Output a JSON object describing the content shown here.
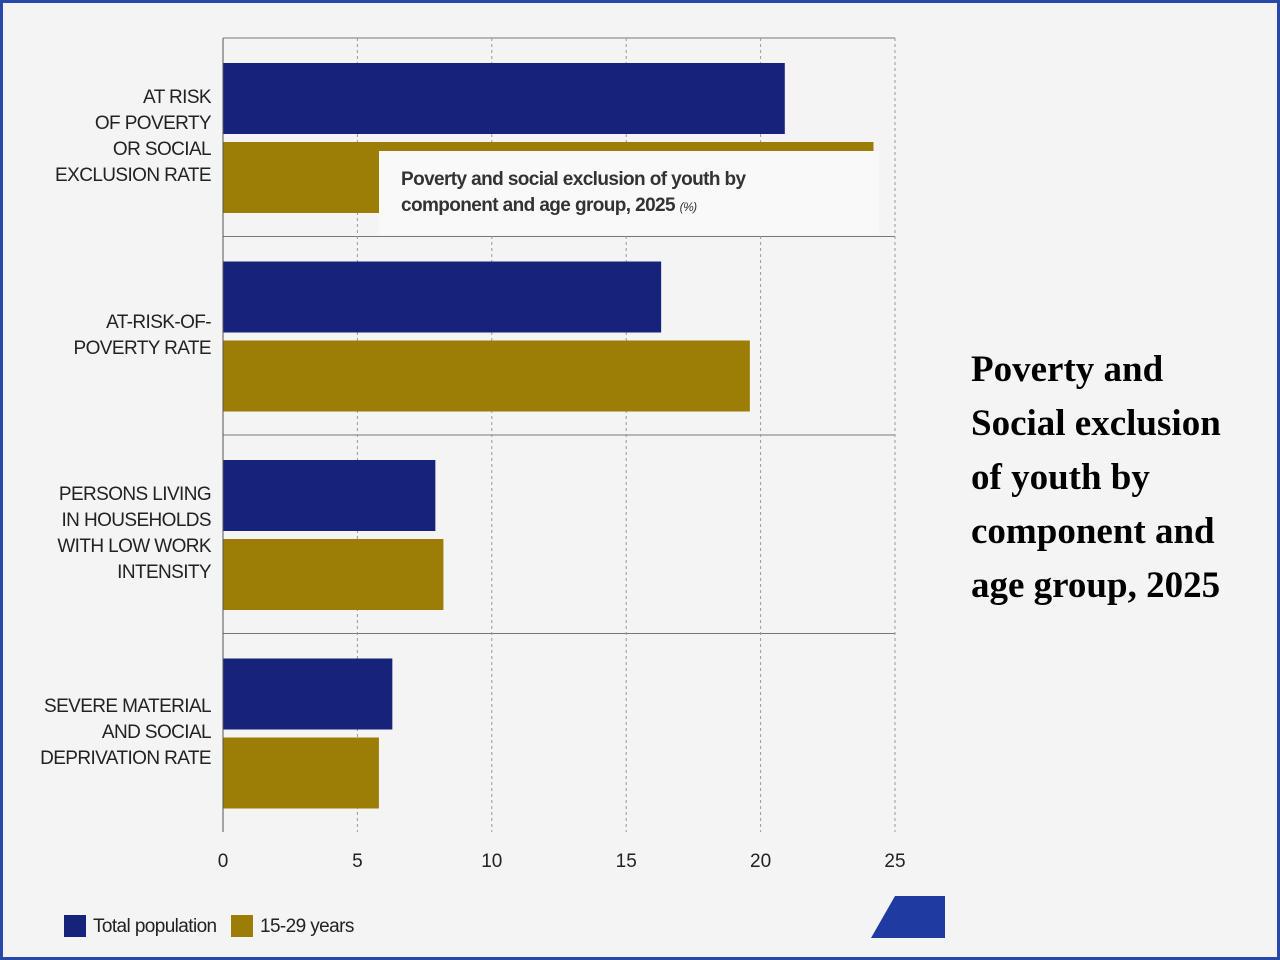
{
  "chart_data": {
    "type": "hbar",
    "title": "Poverty and Social exclusion of youth by component and age group, 2025",
    "annotation": "Poverty and social exclusion of youth by component and age group, 2025",
    "unit": "(%)",
    "categories": [
      "AT RISK\nOF POVERTY\nOR SOCIAL\nEXCLUSION RATE",
      "AT-RISK-OF-\nPOVERTY RATE",
      "PERSONS LIVING\nIN HOUSEHOLDS\nWITH LOW WORK\nINTENSITY",
      "SEVERE MATERIAL\nAND SOCIAL\nDEPRIVATION RATE"
    ],
    "series": [
      {
        "name": "Total population",
        "color": "#16237a",
        "values": [
          20.9,
          16.3,
          7.9,
          6.3
        ]
      },
      {
        "name": "15-29 years",
        "color": "#9c7d05",
        "values": [
          24.2,
          19.6,
          8.2,
          5.8
        ]
      }
    ],
    "xlim": [
      0,
      25
    ],
    "xticks": [
      0,
      5,
      10,
      15,
      20,
      25
    ],
    "grid": true
  }
}
